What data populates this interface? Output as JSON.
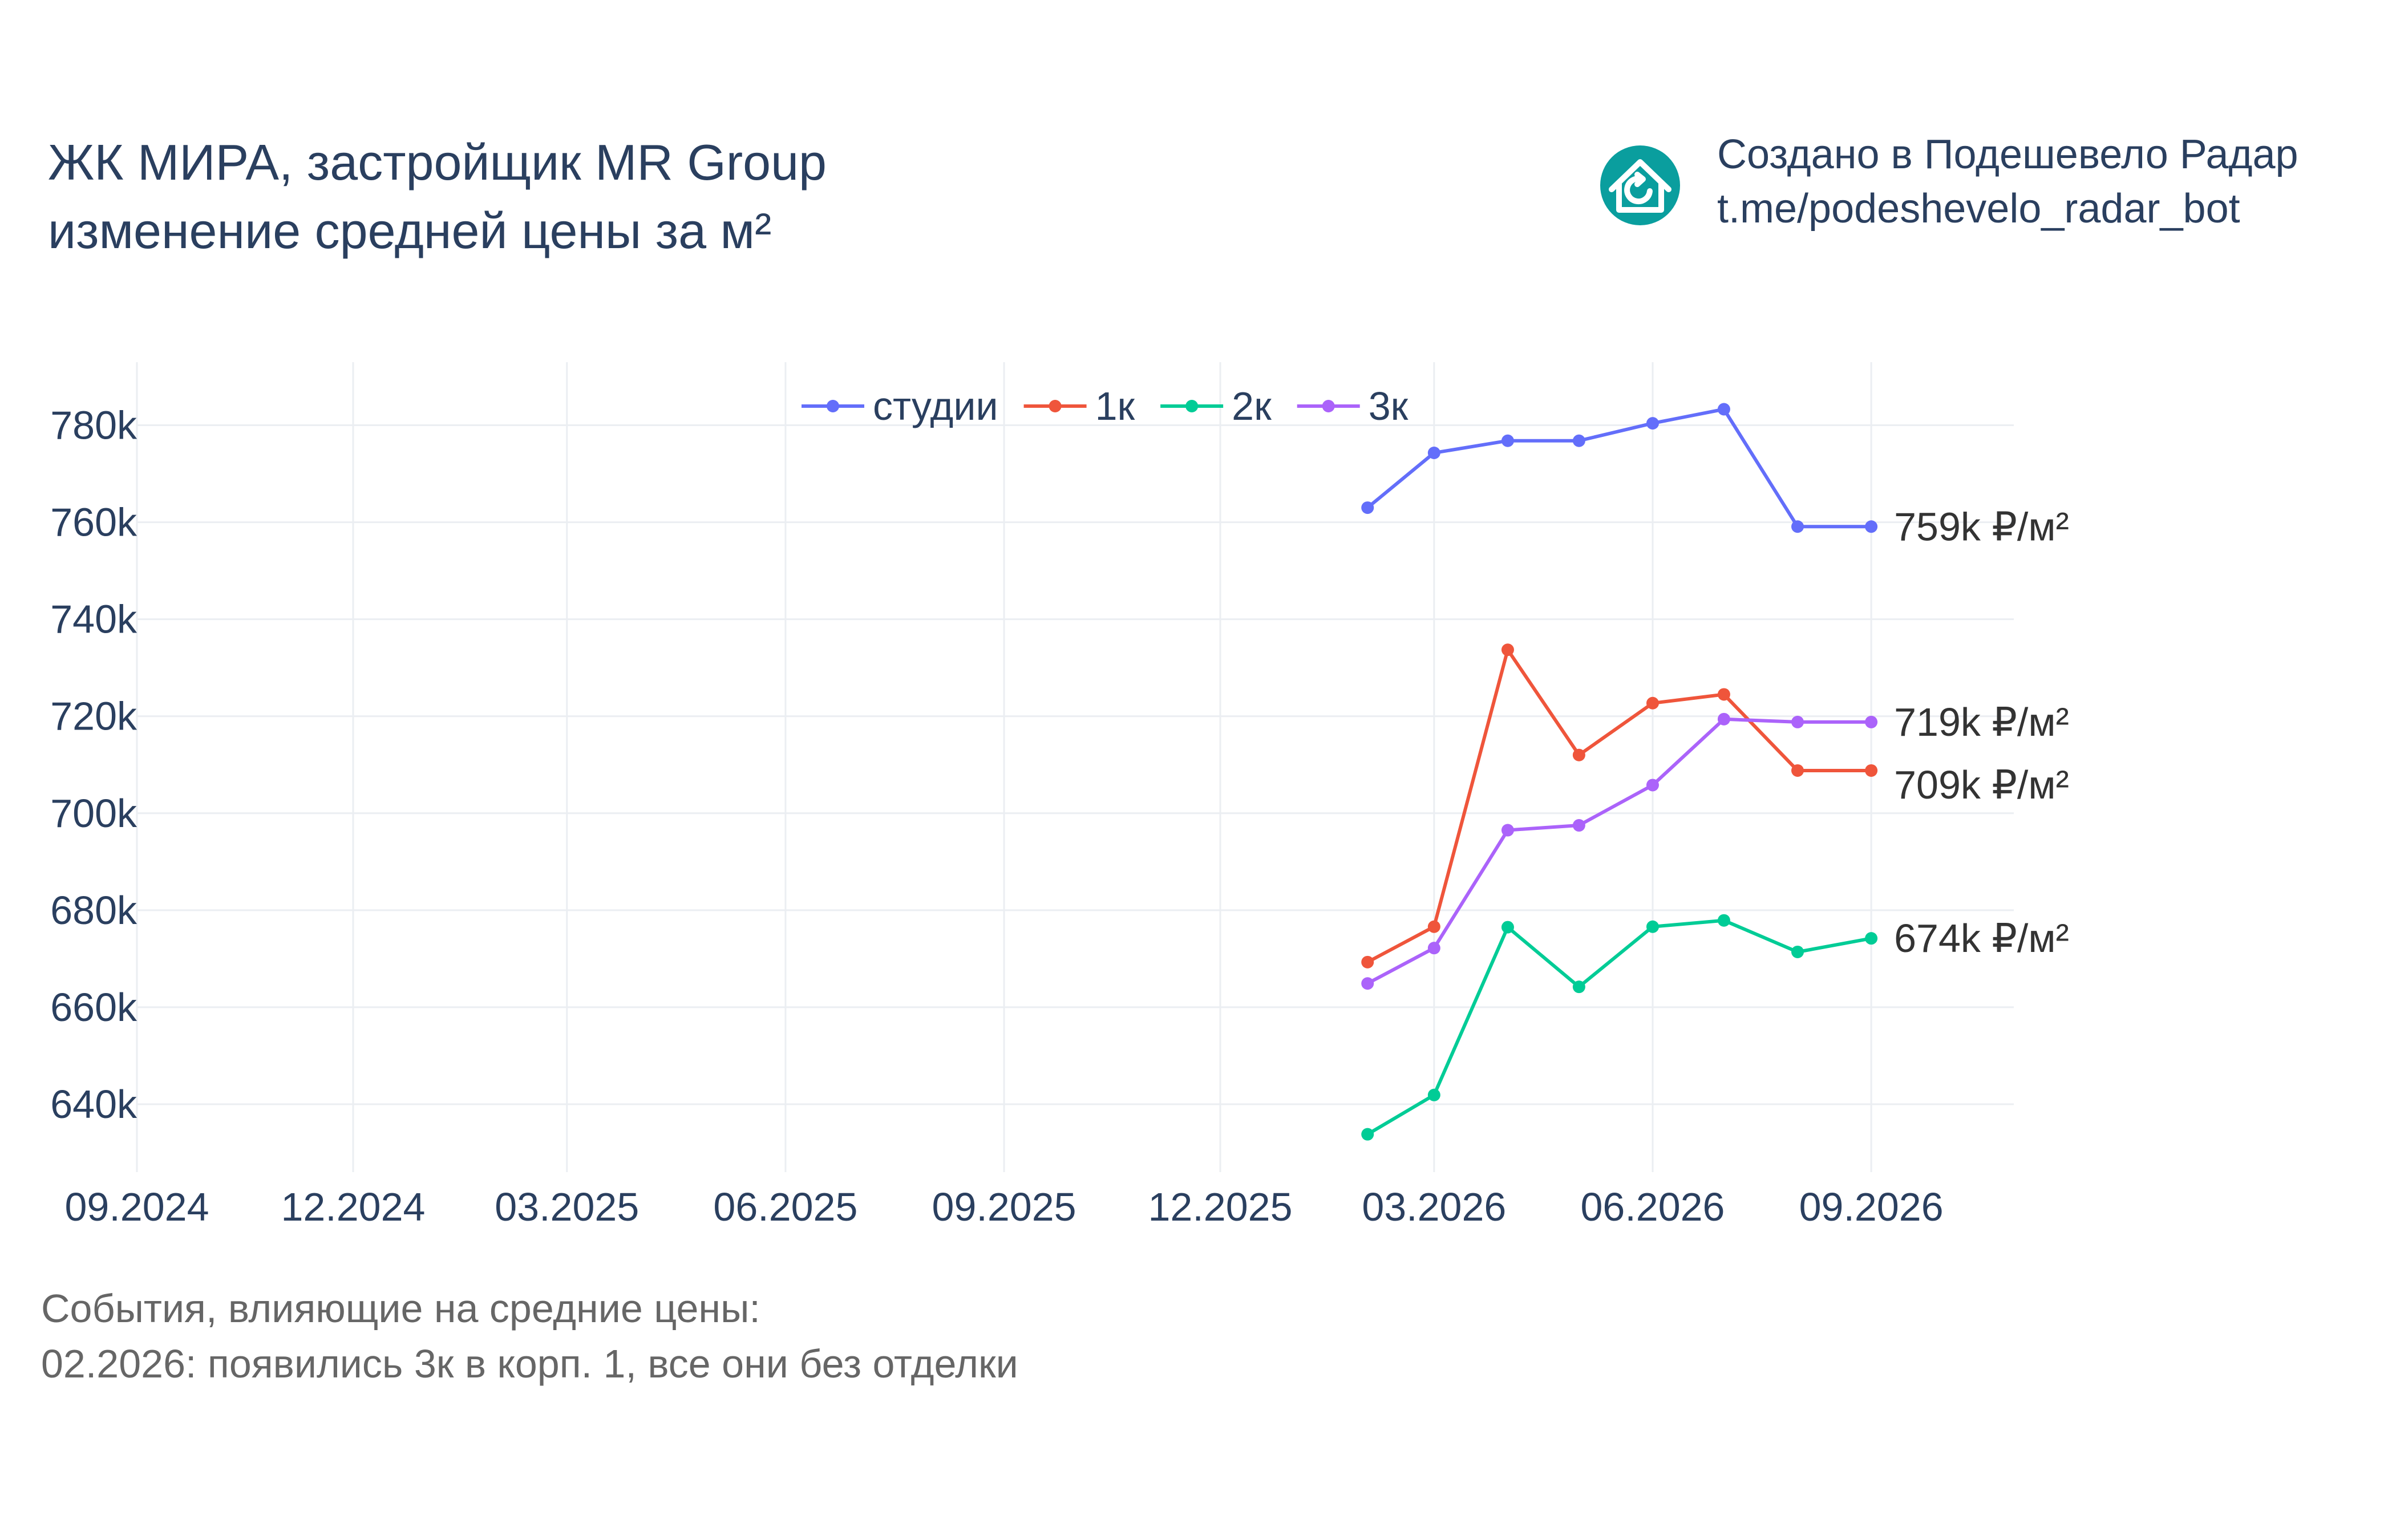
{
  "header": {
    "title_line1": "ЖК МИРА, застройщик MR Group",
    "title_line2": "изменение средней цены за м²"
  },
  "branding": {
    "icon": "house-refresh-icon",
    "icon_color": "#0a9e9e",
    "line1": "Создано в Подешевело Радар",
    "line2": "t.me/podeshevelo_radar_bot"
  },
  "footnote": {
    "line1": "События, влияющие на средние цены:",
    "line2": "02.2026: появились 3к в корп. 1, все они без отделки"
  },
  "chart_data": {
    "type": "line",
    "x_ticks": [
      "09.2024",
      "12.2024",
      "03.2025",
      "06.2025",
      "09.2025",
      "12.2025",
      "03.2026",
      "06.2026",
      "09.2026"
    ],
    "y_ticks": [
      "640k",
      "660k",
      "680k",
      "700k",
      "720k",
      "740k",
      "760k",
      "780k"
    ],
    "x_range": [
      "2024-09-01",
      "2026-10-31"
    ],
    "y_range": [
      626000,
      793000
    ],
    "grid": true,
    "legend_position": "top-center",
    "x": [
      "2026-02-01",
      "2026-03-01",
      "2026-04-01",
      "2026-05-01",
      "2026-06-01",
      "2026-07-01",
      "2026-08-01",
      "2026-09-01"
    ],
    "series": [
      {
        "name": "студии",
        "color": "#636efa",
        "values": [
          763000,
          774300,
          776800,
          776800,
          780400,
          783300,
          759100,
          759100
        ],
        "end_label": "759k ₽/м²"
      },
      {
        "name": "1к",
        "color": "#ef553b",
        "values": [
          669300,
          676600,
          733700,
          712000,
          722700,
          724500,
          708800,
          708800
        ],
        "end_label": "709k ₽/м²"
      },
      {
        "name": "2к",
        "color": "#00cc96",
        "values": [
          633800,
          641900,
          676500,
          664200,
          676600,
          677900,
          671400,
          674200
        ],
        "end_label": "674k ₽/м²"
      },
      {
        "name": "3к",
        "color": "#ab63fa",
        "values": [
          664900,
          672200,
          696500,
          697500,
          705800,
          719400,
          718800,
          718800
        ],
        "end_label": "719k ₽/м²"
      }
    ]
  }
}
